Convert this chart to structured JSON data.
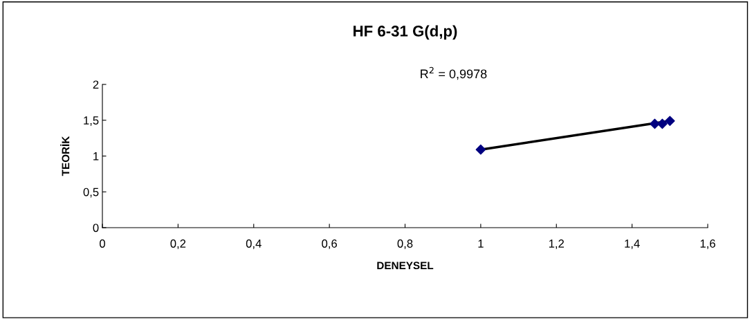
{
  "chart_data": {
    "type": "scatter",
    "title": "HF 6-31 G(d,p)",
    "xlabel": "DENEYSEL",
    "ylabel": "TEORİK",
    "annotations": [
      "R$^{2}$ = 0,9978"
    ],
    "xlim": [
      0,
      1.6
    ],
    "xticks": [
      0,
      {
        "value": 0.2,
        "label": "0,2"
      },
      {
        "value": 0.4,
        "label": "0,4"
      },
      {
        "value": 0.6,
        "label": "0,6"
      },
      {
        "value": 0.8,
        "label": "0,8"
      },
      1,
      {
        "value": 1.2,
        "label": "1,2"
      },
      {
        "value": 1.4,
        "label": "1,4"
      },
      {
        "value": 1.6,
        "label": "1,6"
      }
    ],
    "ylim": [
      0,
      2
    ],
    "yticks": [
      0,
      {
        "value": 0.5,
        "label": "0,5"
      },
      1,
      {
        "value": 1.5,
        "label": "1,5"
      },
      2
    ],
    "grid": false,
    "legend": false,
    "marker": "diamond",
    "series": [
      {
        "type": "line",
        "color": "#000000",
        "x": [
          1.0,
          1.5
        ],
        "values": [
          1.09,
          1.49
        ],
        "marker": "none"
      },
      {
        "color": "#000080",
        "x": [
          1.0,
          1.46,
          1.48,
          1.5
        ],
        "values": [
          1.09,
          1.45,
          1.45,
          1.49
        ]
      }
    ]
  }
}
